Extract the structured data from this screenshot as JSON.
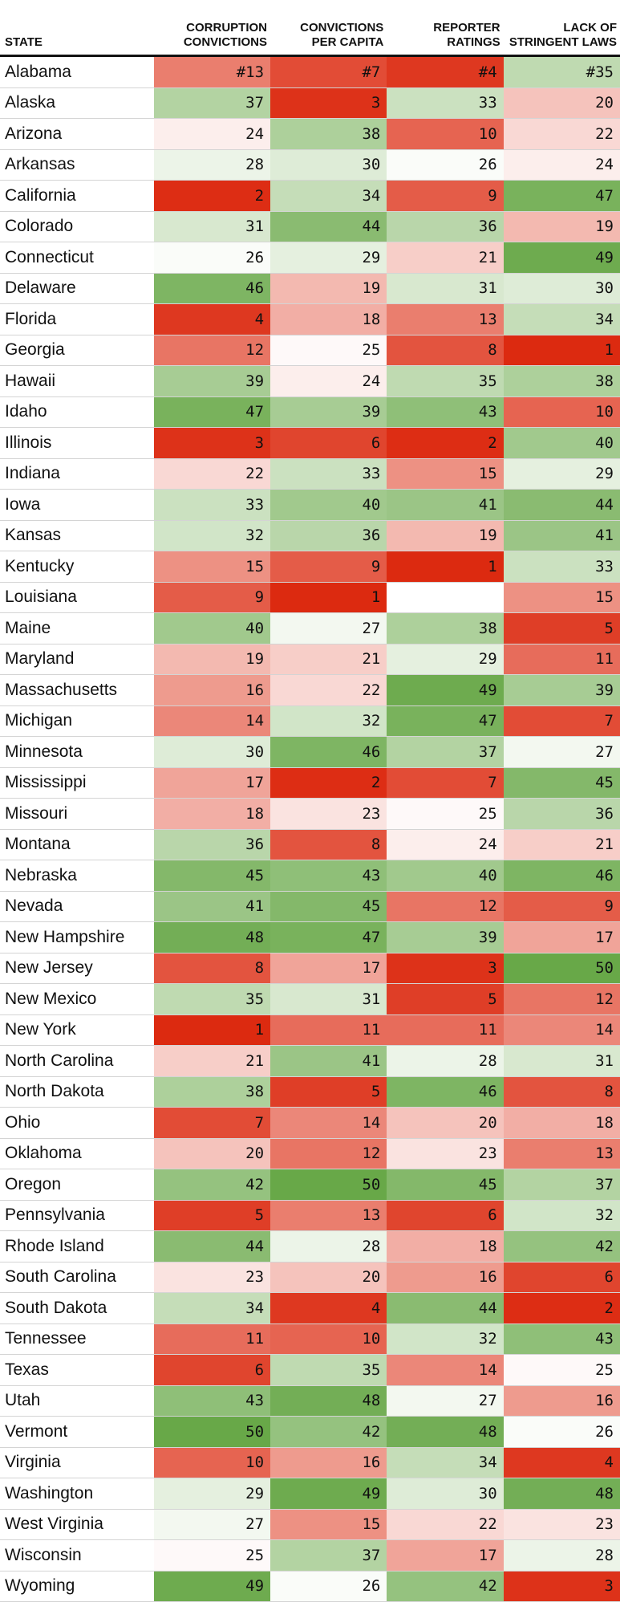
{
  "chart_data": {
    "type": "table",
    "columns": [
      "STATE",
      "CORRUPTION CONVICTIONS",
      "CONVICTIONS PER CAPITA",
      "REPORTER RATINGS",
      "LACK OF STRINGENT LAWS"
    ],
    "header_lines": [
      [
        "STATE"
      ],
      [
        "CORRUPTION",
        "CONVICTIONS"
      ],
      [
        "CONVICTIONS",
        "PER CAPITA"
      ],
      [
        "REPORTER",
        "RATINGS"
      ],
      [
        "LACK OF",
        "STRINGENT LAWS"
      ]
    ],
    "rows": [
      [
        "Alabama",
        "#13",
        "#7",
        "#4",
        "#35"
      ],
      [
        "Alaska",
        "37",
        "3",
        "33",
        "20"
      ],
      [
        "Arizona",
        "24",
        "38",
        "10",
        "22"
      ],
      [
        "Arkansas",
        "28",
        "30",
        "26",
        "24"
      ],
      [
        "California",
        "2",
        "34",
        "9",
        "47"
      ],
      [
        "Colorado",
        "31",
        "44",
        "36",
        "19"
      ],
      [
        "Connecticut",
        "26",
        "29",
        "21",
        "49"
      ],
      [
        "Delaware",
        "46",
        "19",
        "31",
        "30"
      ],
      [
        "Florida",
        "4",
        "18",
        "13",
        "34"
      ],
      [
        "Georgia",
        "12",
        "25",
        "8",
        "1"
      ],
      [
        "Hawaii",
        "39",
        "24",
        "35",
        "38"
      ],
      [
        "Idaho",
        "47",
        "39",
        "43",
        "10"
      ],
      [
        "Illinois",
        "3",
        "6",
        "2",
        "40"
      ],
      [
        "Indiana",
        "22",
        "33",
        "15",
        "29"
      ],
      [
        "Iowa",
        "33",
        "40",
        "41",
        "44"
      ],
      [
        "Kansas",
        "32",
        "36",
        "19",
        "41"
      ],
      [
        "Kentucky",
        "15",
        "9",
        "1",
        "33"
      ],
      [
        "Louisiana",
        "9",
        "1",
        "",
        "15"
      ],
      [
        "Maine",
        "40",
        "27",
        "38",
        "5"
      ],
      [
        "Maryland",
        "19",
        "21",
        "29",
        "11"
      ],
      [
        "Massachusetts",
        "16",
        "22",
        "49",
        "39"
      ],
      [
        "Michigan",
        "14",
        "32",
        "47",
        "7"
      ],
      [
        "Minnesota",
        "30",
        "46",
        "37",
        "27"
      ],
      [
        "Mississippi",
        "17",
        "2",
        "7",
        "45"
      ],
      [
        "Missouri",
        "18",
        "23",
        "25",
        "36"
      ],
      [
        "Montana",
        "36",
        "8",
        "24",
        "21"
      ],
      [
        "Nebraska",
        "45",
        "43",
        "40",
        "46"
      ],
      [
        "Nevada",
        "41",
        "45",
        "12",
        "9"
      ],
      [
        "New Hampshire",
        "48",
        "47",
        "39",
        "17"
      ],
      [
        "New Jersey",
        "8",
        "17",
        "3",
        "50"
      ],
      [
        "New Mexico",
        "35",
        "31",
        "5",
        "12"
      ],
      [
        "New York",
        "1",
        "11",
        "11",
        "14"
      ],
      [
        "North Carolina",
        "21",
        "41",
        "28",
        "31"
      ],
      [
        "North Dakota",
        "38",
        "5",
        "46",
        "8"
      ],
      [
        "Ohio",
        "7",
        "14",
        "20",
        "18"
      ],
      [
        "Oklahoma",
        "20",
        "12",
        "23",
        "13"
      ],
      [
        "Oregon",
        "42",
        "50",
        "45",
        "37"
      ],
      [
        "Pennsylvania",
        "5",
        "13",
        "6",
        "32"
      ],
      [
        "Rhode Island",
        "44",
        "28",
        "18",
        "42"
      ],
      [
        "South Carolina",
        "23",
        "20",
        "16",
        "6"
      ],
      [
        "South Dakota",
        "34",
        "4",
        "44",
        "2"
      ],
      [
        "Tennessee",
        "11",
        "10",
        "32",
        "43"
      ],
      [
        "Texas",
        "6",
        "35",
        "14",
        "25"
      ],
      [
        "Utah",
        "43",
        "48",
        "27",
        "16"
      ],
      [
        "Vermont",
        "50",
        "42",
        "48",
        "26"
      ],
      [
        "Virginia",
        "10",
        "16",
        "34",
        "4"
      ],
      [
        "Washington",
        "29",
        "49",
        "30",
        "48"
      ],
      [
        "West Virginia",
        "27",
        "15",
        "22",
        "23"
      ],
      [
        "Wisconsin",
        "25",
        "37",
        "17",
        "28"
      ],
      [
        "Wyoming",
        "49",
        "26",
        "42",
        "3"
      ]
    ],
    "color_scale": {
      "low_rank": "#dc2a10",
      "mid": "#ffffff",
      "high_rank": "#68a848",
      "max_rank": 50
    }
  }
}
